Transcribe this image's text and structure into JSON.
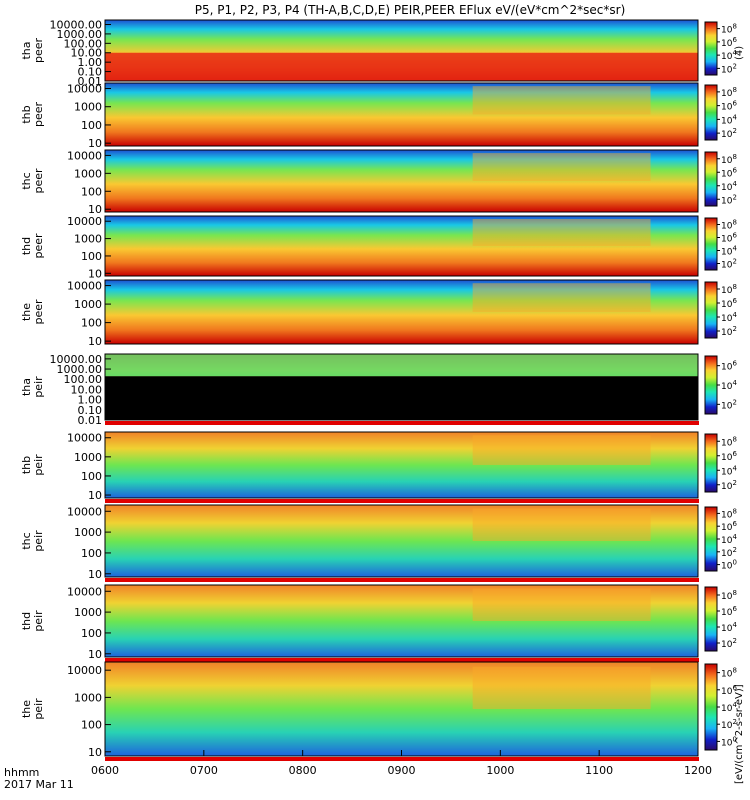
{
  "chart_data": {
    "type": "heatmap",
    "title": "P5, P1, P2, P3, P4 (TH-A,B,C,D,E) PEIR,PEER EFlux eV/(eV*cm^2*sec*sr)",
    "time_axis": {
      "range": [
        "0600",
        "1200"
      ],
      "tick_labels": [
        "0600",
        "0700",
        "0800",
        "0900",
        "1000",
        "1100",
        "1200"
      ],
      "corner_label": "hhmm",
      "date_label": "2017 Mar 11"
    },
    "energy_scale": "log",
    "colorbar_title": "[eV/(cm^2-s-sr-eV)]",
    "colorbar_ticks": [
      "10^2",
      "10^4",
      "10^6",
      "10^8"
    ],
    "colorbar_partial_text": "(4)",
    "panels": [
      {
        "probe": "tha",
        "species": "peer",
        "ylim": [
          0.01,
          30000
        ],
        "ytick_labels": [
          "10000.00",
          "1000.00",
          "100.00",
          "10.00",
          "1.00",
          "0.10",
          "0.01"
        ],
        "ytick_values": [
          10000,
          1000,
          100,
          10,
          1,
          0.1,
          0.01
        ],
        "colorbar_ticks": [
          "10^2",
          "10^4",
          "10^6",
          "10^8"
        ]
      },
      {
        "probe": "thb",
        "species": "peer",
        "ylim": [
          7,
          20000
        ],
        "ytick_labels": [
          "10000",
          "1000",
          "100",
          "10"
        ],
        "ytick_values": [
          10000,
          1000,
          100,
          10
        ],
        "colorbar_ticks": [
          "10^2",
          "10^4",
          "10^6",
          "10^8"
        ]
      },
      {
        "probe": "thc",
        "species": "peer",
        "ylim": [
          7,
          20000
        ],
        "ytick_labels": [
          "10000",
          "1000",
          "100",
          "10"
        ],
        "ytick_values": [
          10000,
          1000,
          100,
          10
        ],
        "colorbar_ticks": [
          "10^2",
          "10^4",
          "10^6",
          "10^8"
        ]
      },
      {
        "probe": "thd",
        "species": "peer",
        "ylim": [
          7,
          20000
        ],
        "ytick_labels": [
          "10000",
          "1000",
          "100",
          "10"
        ],
        "ytick_values": [
          10000,
          1000,
          100,
          10
        ],
        "colorbar_ticks": [
          "10^2",
          "10^4",
          "10^6",
          "10^8"
        ]
      },
      {
        "probe": "the",
        "species": "peer",
        "ylim": [
          7,
          20000
        ],
        "ytick_labels": [
          "10000",
          "1000",
          "100",
          "10"
        ],
        "ytick_values": [
          10000,
          1000,
          100,
          10
        ],
        "colorbar_ticks": [
          "10^2",
          "10^4",
          "10^6",
          "10^8"
        ]
      },
      {
        "probe": "tha",
        "species": "peir",
        "ylim": [
          0.01,
          30000
        ],
        "ytick_labels": [
          "10000.00",
          "1000.00",
          "100.00",
          "10.00",
          "1.00",
          "0.10",
          "0.01"
        ],
        "ytick_values": [
          10000,
          1000,
          100,
          10,
          1,
          0.1,
          0.01
        ],
        "colorbar_ticks": [
          "10^2",
          "10^4",
          "10^6"
        ]
      },
      {
        "probe": "thb",
        "species": "peir",
        "ylim": [
          7,
          20000
        ],
        "ytick_labels": [
          "10000",
          "1000",
          "100",
          "10"
        ],
        "ytick_values": [
          10000,
          1000,
          100,
          10
        ],
        "colorbar_ticks": [
          "10^2",
          "10^4",
          "10^6",
          "10^8"
        ]
      },
      {
        "probe": "thc",
        "species": "peir",
        "ylim": [
          7,
          20000
        ],
        "ytick_labels": [
          "10000",
          "1000",
          "100",
          "10"
        ],
        "ytick_values": [
          10000,
          1000,
          100,
          10
        ],
        "colorbar_ticks": [
          "10^0",
          "10^2",
          "10^4",
          "10^6",
          "10^8"
        ]
      },
      {
        "probe": "thd",
        "species": "peir",
        "ylim": [
          7,
          20000
        ],
        "ytick_labels": [
          "10000",
          "1000",
          "100",
          "10"
        ],
        "ytick_values": [
          10000,
          1000,
          100,
          10
        ],
        "colorbar_ticks": [
          "10^2",
          "10^4",
          "10^6",
          "10^8"
        ]
      },
      {
        "probe": "the",
        "species": "peir",
        "ylim": [
          7,
          20000
        ],
        "ytick_labels": [
          "10000",
          "1000",
          "100",
          "10"
        ],
        "ytick_values": [
          10000,
          1000,
          100,
          10
        ],
        "colorbar_ticks": [
          "10^0",
          "10^2",
          "10^4",
          "10^6",
          "10^8"
        ]
      }
    ]
  }
}
